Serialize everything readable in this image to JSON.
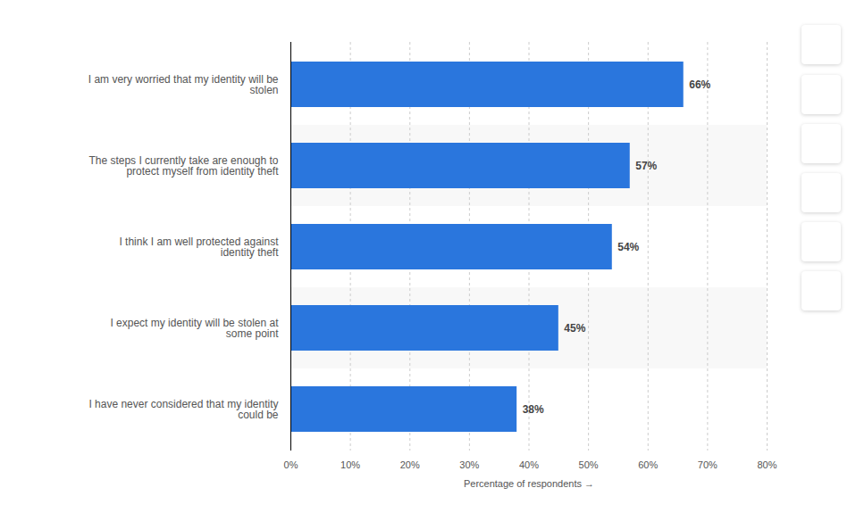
{
  "chart_data": {
    "type": "bar",
    "orientation": "horizontal",
    "categories": [
      "I am very worried that my identity will be stolen",
      "The steps I currently take are enough to protect myself from identity theft",
      "I think I am well protected against identity theft",
      "I expect my identity will be stolen at some point",
      "I have never considered that my identity could be"
    ],
    "values": [
      66,
      57,
      54,
      45,
      38
    ],
    "value_labels": [
      "66%",
      "57%",
      "54%",
      "45%",
      "38%"
    ],
    "data_labels": true,
    "color": "#2a76dd",
    "x_label": "Percentage of respondents",
    "xlim": [
      0,
      80
    ],
    "xticks": [
      {
        "value": 0,
        "label": "0%"
      },
      {
        "value": 10,
        "label": "10%"
      },
      {
        "value": 20,
        "label": "20%"
      },
      {
        "value": 30,
        "label": "30%"
      },
      {
        "value": 40,
        "label": "40%"
      },
      {
        "value": 50,
        "label": "50%"
      },
      {
        "value": 60,
        "label": "60%"
      },
      {
        "value": 70,
        "label": "70%"
      },
      {
        "value": 80,
        "label": "80%"
      }
    ],
    "grid": true
  }
}
